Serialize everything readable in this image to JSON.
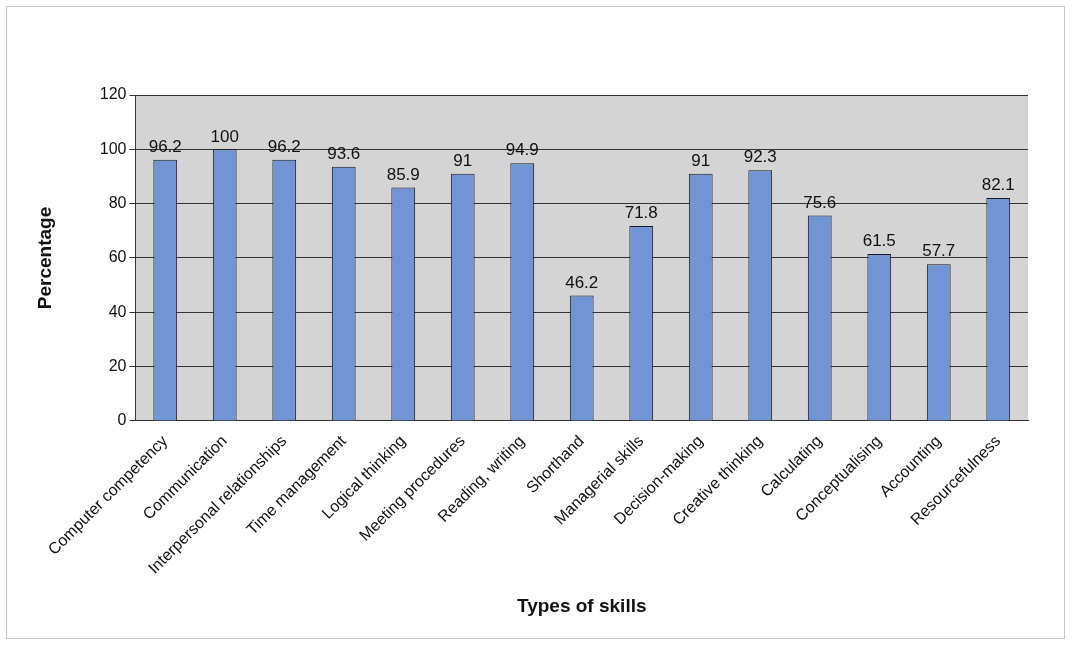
{
  "chart_data": {
    "type": "bar",
    "xlabel": "Types of skills",
    "ylabel": "Percentage",
    "categories": [
      "Computer competency",
      "Communication",
      "Interpersonal relationships",
      "Time management",
      "Logical thinking",
      "Meeting procedures",
      "Reading, writing",
      "Shorthand",
      "Managerial skills",
      "Decision-making",
      "Creative thinking",
      "Calculating",
      "Conceptualising",
      "Accounting",
      "Resourcefulness"
    ],
    "values": [
      96.2,
      100,
      96.2,
      93.6,
      85.9,
      91,
      94.9,
      46.2,
      71.8,
      91,
      92.3,
      75.6,
      61.5,
      57.7,
      82.1
    ],
    "color": "#7094d4",
    "ylim": [
      0,
      120
    ],
    "yticks": [
      0,
      20,
      40,
      60,
      80,
      100,
      120
    ],
    "grid": "y",
    "legend": false,
    "data_labels": true
  }
}
